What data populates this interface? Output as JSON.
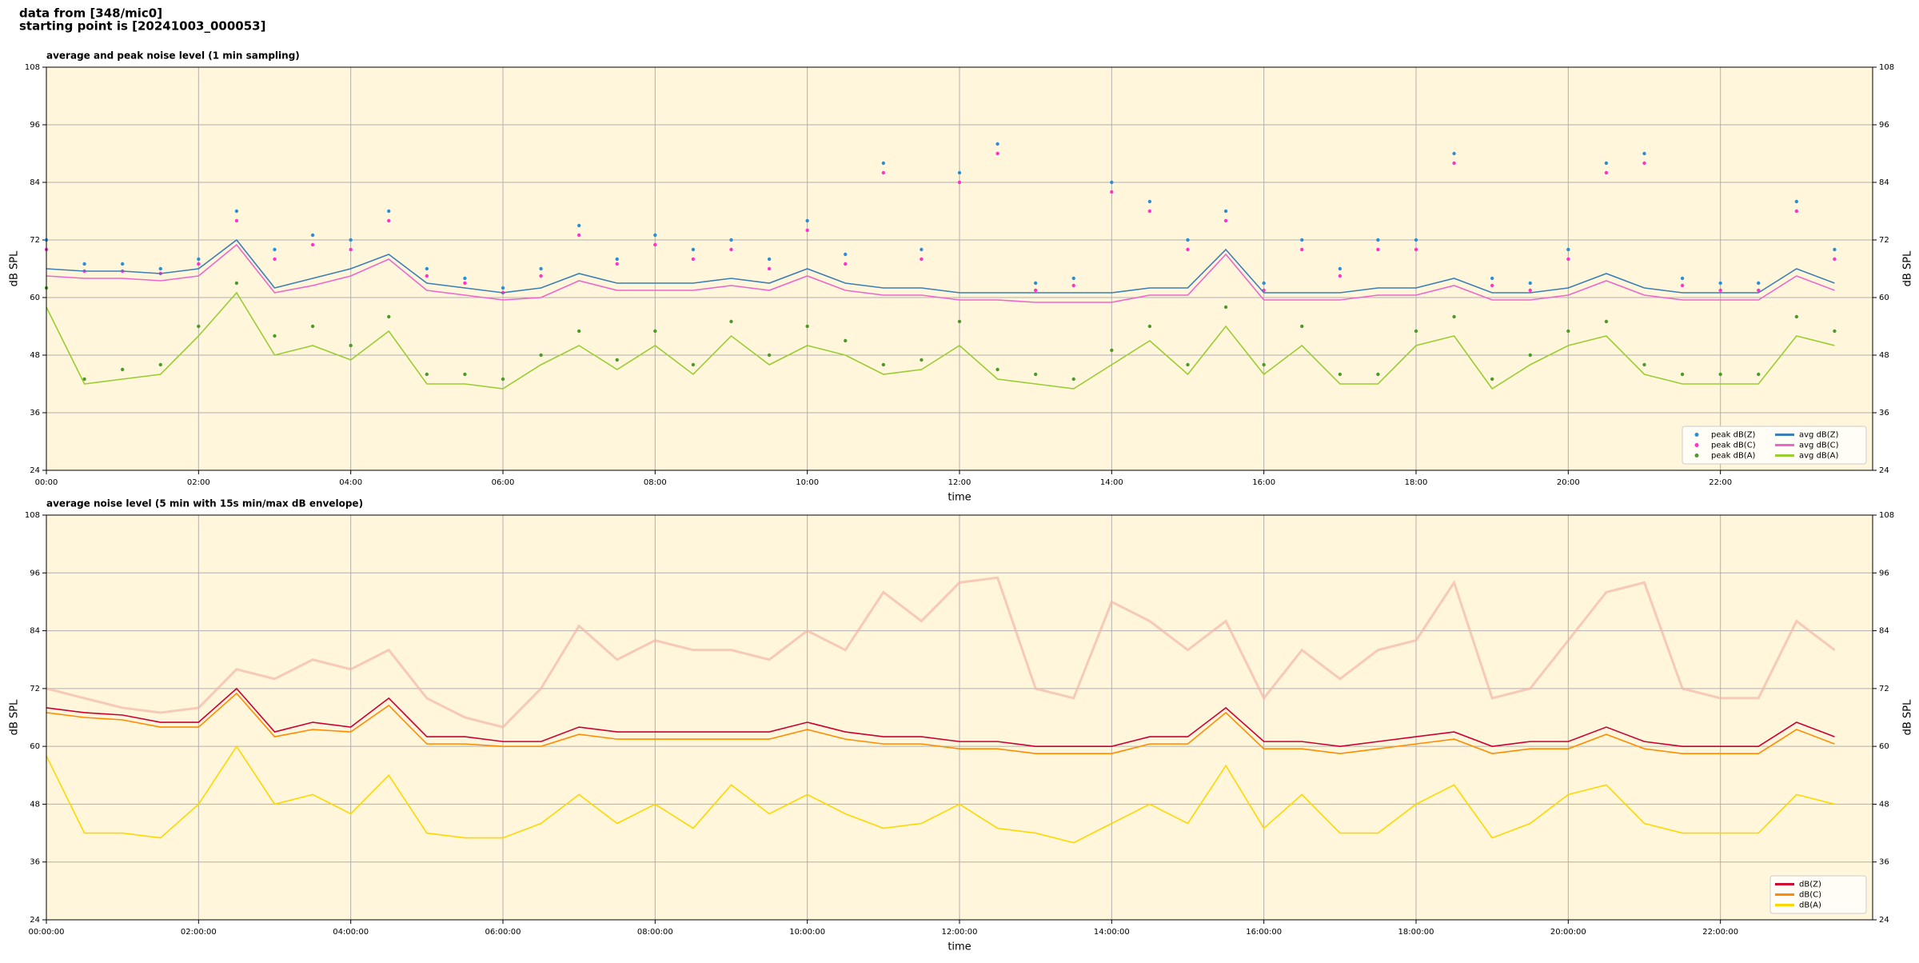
{
  "header": {
    "lines": [
      "data from [348/mic0]",
      "starting point is [20241003_000053]"
    ]
  },
  "chart_data": [
    {
      "type": "line",
      "title": "average and peak noise level (1 min sampling)",
      "xlabel": "time",
      "ylabel": "dB SPL",
      "y2label": "dB SPL",
      "xlim": [
        0,
        24
      ],
      "ylim": [
        24,
        108
      ],
      "y2lim": [
        24,
        108
      ],
      "xticks": [
        {
          "value": 0,
          "label": "00:00"
        },
        {
          "value": 2,
          "label": "02:00"
        },
        {
          "value": 4,
          "label": "04:00"
        },
        {
          "value": 6,
          "label": "06:00"
        },
        {
          "value": 8,
          "label": "08:00"
        },
        {
          "value": 10,
          "label": "10:00"
        },
        {
          "value": 12,
          "label": "12:00"
        },
        {
          "value": 14,
          "label": "14:00"
        },
        {
          "value": 16,
          "label": "16:00"
        },
        {
          "value": 18,
          "label": "18:00"
        },
        {
          "value": 20,
          "label": "20:00"
        },
        {
          "value": 22,
          "label": "22:00"
        }
      ],
      "yticks": [
        24,
        36,
        48,
        60,
        72,
        84,
        96,
        108
      ],
      "y2ticks": [
        24,
        36,
        48,
        60,
        72,
        84,
        96,
        108
      ],
      "grid": true,
      "legend": "lower right",
      "legend_columns": 2,
      "background": "#fff6dc",
      "x": [
        0,
        0.5,
        1,
        1.5,
        2,
        2.5,
        3,
        3.5,
        4,
        4.5,
        5,
        5.5,
        6,
        6.5,
        7,
        7.5,
        8,
        8.5,
        9,
        9.5,
        10,
        10.5,
        11,
        11.5,
        12,
        12.5,
        13,
        13.5,
        14,
        14.5,
        15,
        15.5,
        16,
        16.5,
        17,
        17.5,
        18,
        18.5,
        19,
        19.5,
        20,
        20.5,
        21,
        21.5,
        22,
        22.5,
        23,
        23.5
      ],
      "series": [
        {
          "name": "peak dB(Z)",
          "color": "#2b8fd6",
          "style": "dots",
          "values": [
            72,
            67,
            67,
            66,
            68,
            78,
            70,
            73,
            72,
            78,
            66,
            64,
            62,
            66,
            75,
            68,
            73,
            70,
            72,
            68,
            76,
            69,
            88,
            70,
            86,
            92,
            63,
            64,
            84,
            80,
            72,
            78,
            63,
            72,
            66,
            72,
            72,
            90,
            64,
            63,
            70,
            88,
            90,
            64,
            63,
            63,
            80,
            70
          ]
        },
        {
          "name": "peak dB(C)",
          "color": "#ff33cc",
          "style": "dots",
          "values": [
            70,
            65.5,
            65.5,
            65,
            67,
            76,
            68,
            71,
            70,
            76,
            64.5,
            63,
            61,
            64.5,
            73,
            67,
            71,
            68,
            70,
            66,
            74,
            67,
            86,
            68,
            84,
            90,
            61.5,
            62.5,
            82,
            78,
            70,
            76,
            61.5,
            70,
            64.5,
            70,
            70,
            88,
            62.5,
            61.5,
            68,
            86,
            88,
            62.5,
            61.5,
            61.5,
            78,
            68
          ]
        },
        {
          "name": "peak dB(A)",
          "color": "#4c9a2a",
          "style": "dots",
          "values": [
            62,
            43,
            45,
            46,
            54,
            63,
            52,
            54,
            50,
            56,
            44,
            44,
            43,
            48,
            53,
            47,
            53,
            46,
            55,
            48,
            54,
            51,
            46,
            47,
            55,
            45,
            44,
            43,
            49,
            54,
            46,
            58,
            46,
            54,
            44,
            44,
            53,
            56,
            43,
            48,
            53,
            55,
            46,
            44,
            44,
            44,
            56,
            53
          ]
        },
        {
          "name": "avg dB(Z)",
          "color": "#3a7fb5",
          "style": "line",
          "values": [
            66,
            65.5,
            65.5,
            65,
            66,
            72,
            62,
            64,
            66,
            69,
            63,
            62,
            61,
            62,
            65,
            63,
            63,
            63,
            64,
            63,
            66,
            63,
            62,
            62,
            61,
            61,
            61,
            61,
            61,
            62,
            62,
            70,
            61,
            61,
            61,
            62,
            62,
            64,
            61,
            61,
            62,
            65,
            62,
            61,
            61,
            61,
            66,
            63
          ]
        },
        {
          "name": "avg dB(C)",
          "color": "#ee66cc",
          "style": "line",
          "values": [
            64.5,
            64,
            64,
            63.5,
            64.5,
            71,
            61,
            62.5,
            64.5,
            68,
            61.5,
            60.5,
            59.5,
            60,
            63.5,
            61.5,
            61.5,
            61.5,
            62.5,
            61.5,
            64.5,
            61.5,
            60.5,
            60.5,
            59.5,
            59.5,
            59,
            59,
            59,
            60.5,
            60.5,
            69,
            59.5,
            59.5,
            59.5,
            60.5,
            60.5,
            62.5,
            59.5,
            59.5,
            60.5,
            63.5,
            60.5,
            59.5,
            59.5,
            59.5,
            64.5,
            61.5
          ]
        },
        {
          "name": "avg dB(A)",
          "color": "#9acd32",
          "style": "line",
          "values": [
            58,
            42,
            43,
            44,
            52,
            61,
            48,
            50,
            47,
            53,
            42,
            42,
            41,
            46,
            50,
            45,
            50,
            44,
            52,
            46,
            50,
            48,
            44,
            45,
            50,
            43,
            42,
            41,
            46,
            51,
            44,
            54,
            44,
            50,
            42,
            42,
            50,
            52,
            41,
            46,
            50,
            52,
            44,
            42,
            42,
            42,
            52,
            50
          ]
        }
      ]
    },
    {
      "type": "line",
      "title": "average noise level (5 min with 15s min/max dB envelope)",
      "xlabel": "time",
      "ylabel": "dB SPL",
      "y2label": "dB SPL",
      "xlim": [
        0,
        24
      ],
      "ylim": [
        24,
        108
      ],
      "y2lim": [
        24,
        108
      ],
      "xticks": [
        {
          "value": 0,
          "label": "00:00:00"
        },
        {
          "value": 2,
          "label": "02:00:00"
        },
        {
          "value": 4,
          "label": "04:00:00"
        },
        {
          "value": 6,
          "label": "06:00:00"
        },
        {
          "value": 8,
          "label": "08:00:00"
        },
        {
          "value": 10,
          "label": "10:00:00"
        },
        {
          "value": 12,
          "label": "12:00:00"
        },
        {
          "value": 14,
          "label": "14:00:00"
        },
        {
          "value": 16,
          "label": "16:00:00"
        },
        {
          "value": 18,
          "label": "18:00:00"
        },
        {
          "value": 20,
          "label": "20:00:00"
        },
        {
          "value": 22,
          "label": "22:00:00"
        }
      ],
      "yticks": [
        24,
        36,
        48,
        60,
        72,
        84,
        96,
        108
      ],
      "y2ticks": [
        24,
        36,
        48,
        60,
        72,
        84,
        96,
        108
      ],
      "grid": true,
      "legend": "lower right",
      "legend_columns": 1,
      "background": "#fff6dc",
      "x": [
        0,
        0.5,
        1,
        1.5,
        2,
        2.5,
        3,
        3.5,
        4,
        4.5,
        5,
        5.5,
        6,
        6.5,
        7,
        7.5,
        8,
        8.5,
        9,
        9.5,
        10,
        10.5,
        11,
        11.5,
        12,
        12.5,
        13,
        13.5,
        14,
        14.5,
        15,
        15.5,
        16,
        16.5,
        17,
        17.5,
        18,
        18.5,
        19,
        19.5,
        20,
        20.5,
        21,
        21.5,
        22,
        22.5,
        23,
        23.5
      ],
      "envelope": {
        "color": "#f4b6a6",
        "values": [
          72,
          70,
          68,
          67,
          68,
          76,
          74,
          78,
          76,
          80,
          70,
          66,
          64,
          72,
          85,
          78,
          82,
          80,
          80,
          78,
          84,
          80,
          92,
          86,
          94,
          95,
          72,
          70,
          90,
          86,
          80,
          86,
          70,
          80,
          74,
          80,
          82,
          94,
          70,
          72,
          82,
          92,
          94,
          72,
          70,
          70,
          86,
          80
        ]
      },
      "series": [
        {
          "name": "dB(Z)",
          "color": "#cc0033",
          "style": "line",
          "values": [
            68,
            67,
            66.5,
            65,
            65,
            72,
            63,
            65,
            64,
            70,
            62,
            62,
            61,
            61,
            64,
            63,
            63,
            63,
            63,
            63,
            65,
            63,
            62,
            62,
            61,
            61,
            60,
            60,
            60,
            62,
            62,
            68,
            61,
            61,
            60,
            61,
            62,
            63,
            60,
            61,
            61,
            64,
            61,
            60,
            60,
            60,
            65,
            62
          ]
        },
        {
          "name": "dB(C)",
          "color": "#ff8c00",
          "style": "line",
          "values": [
            67,
            66,
            65.5,
            64,
            64,
            71,
            62,
            63.5,
            63,
            68.5,
            60.5,
            60.5,
            60,
            60,
            62.5,
            61.5,
            61.5,
            61.5,
            61.5,
            61.5,
            63.5,
            61.5,
            60.5,
            60.5,
            59.5,
            59.5,
            58.5,
            58.5,
            58.5,
            60.5,
            60.5,
            67,
            59.5,
            59.5,
            58.5,
            59.5,
            60.5,
            61.5,
            58.5,
            59.5,
            59.5,
            62.5,
            59.5,
            58.5,
            58.5,
            58.5,
            63.5,
            60.5
          ]
        },
        {
          "name": "dB(A)",
          "color": "#ffd700",
          "style": "line",
          "values": [
            58,
            42,
            42,
            41,
            48,
            60,
            48,
            50,
            46,
            54,
            42,
            41,
            41,
            44,
            50,
            44,
            48,
            43,
            52,
            46,
            50,
            46,
            43,
            44,
            48,
            43,
            42,
            40,
            44,
            48,
            44,
            56,
            43,
            50,
            42,
            42,
            48,
            52,
            41,
            44,
            50,
            52,
            44,
            42,
            42,
            42,
            50,
            48
          ]
        }
      ]
    }
  ]
}
